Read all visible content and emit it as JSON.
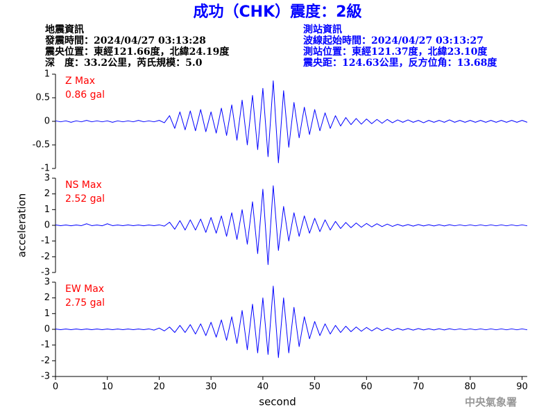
{
  "header": {
    "title": "成功（CHK）震度：2級",
    "left": [
      "地震資訊",
      "發震時間：2024/04/27 03:13:28",
      "震央位置：東經121.66度，北緯24.19度",
      "深　度：33.2公里，芮氏規模：5.0"
    ],
    "right": [
      "測站資訊",
      "波線起始時間：2024/04/27 03:13:27",
      "測站位置：東經121.37度，北緯23.10度",
      "震央距：124.63公里，反方位角：13.68度"
    ]
  },
  "footer": "中央氣象署",
  "chart_data": [
    {
      "type": "line",
      "label": "Z Max",
      "max_label": "0.86 gal",
      "color": "#0000ff",
      "xlim": [
        0,
        91
      ],
      "ylim": [
        -1,
        1
      ],
      "yticks": [
        -1,
        -0.5,
        0,
        0.5,
        1
      ],
      "x": [
        0,
        1,
        2,
        3,
        4,
        5,
        6,
        7,
        8,
        9,
        10,
        11,
        12,
        13,
        14,
        15,
        16,
        17,
        18,
        19,
        20,
        21,
        22,
        23,
        24,
        25,
        26,
        27,
        28,
        29,
        30,
        31,
        32,
        33,
        34,
        35,
        36,
        37,
        38,
        39,
        40,
        41,
        42,
        43,
        44,
        45,
        46,
        47,
        48,
        49,
        50,
        51,
        52,
        53,
        54,
        55,
        56,
        57,
        58,
        59,
        60,
        61,
        62,
        63,
        64,
        65,
        66,
        67,
        68,
        69,
        70,
        71,
        72,
        73,
        74,
        75,
        76,
        77,
        78,
        79,
        80,
        81,
        82,
        83,
        84,
        85,
        86,
        87,
        88,
        89,
        90,
        91
      ],
      "values": [
        0.01,
        -0.01,
        0.01,
        -0.02,
        0.01,
        -0.01,
        0.02,
        -0.01,
        0.01,
        -0.01,
        0.01,
        -0.02,
        0.01,
        -0.01,
        0.01,
        -0.01,
        0.02,
        -0.01,
        0.01,
        -0.01,
        0.02,
        -0.03,
        0.12,
        -0.15,
        0.2,
        -0.18,
        0.22,
        -0.2,
        0.25,
        -0.22,
        0.2,
        -0.25,
        0.28,
        -0.3,
        0.35,
        -0.4,
        0.45,
        -0.5,
        0.55,
        -0.6,
        0.7,
        -0.75,
        0.86,
        -0.88,
        0.65,
        -0.55,
        0.4,
        -0.35,
        0.3,
        -0.28,
        0.25,
        -0.2,
        0.18,
        -0.15,
        0.12,
        -0.1,
        0.08,
        -0.07,
        0.06,
        -0.06,
        0.05,
        -0.05,
        0.04,
        -0.04,
        0.04,
        -0.03,
        0.03,
        -0.02,
        0.03,
        -0.02,
        0.02,
        -0.03,
        0.02,
        -0.02,
        0.02,
        -0.02,
        0.03,
        -0.02,
        0.02,
        -0.02,
        0.02,
        -0.02,
        0.02,
        -0.02,
        0.02,
        -0.02,
        0.02,
        -0.02,
        0.02,
        -0.02,
        0.02,
        -0.02
      ]
    },
    {
      "type": "line",
      "label": "NS Max",
      "max_label": "2.52 gal",
      "color": "#0000ff",
      "ylabel": "acceleration",
      "xlim": [
        0,
        91
      ],
      "ylim": [
        -3,
        3
      ],
      "yticks": [
        -3,
        -2,
        -1,
        0,
        1,
        2,
        3
      ],
      "x": [
        0,
        1,
        2,
        3,
        4,
        5,
        6,
        7,
        8,
        9,
        10,
        11,
        12,
        13,
        14,
        15,
        16,
        17,
        18,
        19,
        20,
        21,
        22,
        23,
        24,
        25,
        26,
        27,
        28,
        29,
        30,
        31,
        32,
        33,
        34,
        35,
        36,
        37,
        38,
        39,
        40,
        41,
        42,
        43,
        44,
        45,
        46,
        47,
        48,
        49,
        50,
        51,
        52,
        53,
        54,
        55,
        56,
        57,
        58,
        59,
        60,
        61,
        62,
        63,
        64,
        65,
        66,
        67,
        68,
        69,
        70,
        71,
        72,
        73,
        74,
        75,
        76,
        77,
        78,
        79,
        80,
        81,
        82,
        83,
        84,
        85,
        86,
        87,
        88,
        89,
        90,
        91
      ],
      "values": [
        0.03,
        -0.02,
        0.02,
        -0.03,
        0.02,
        -0.02,
        0.1,
        -0.02,
        0.02,
        -0.03,
        0.1,
        -0.02,
        0.02,
        -0.02,
        0.03,
        -0.02,
        0.02,
        -0.03,
        0.02,
        -0.02,
        0.03,
        -0.05,
        0.2,
        -0.25,
        0.3,
        -0.3,
        0.35,
        -0.3,
        0.4,
        -0.45,
        0.5,
        -0.5,
        0.6,
        -0.7,
        0.8,
        -0.9,
        1.0,
        -1.2,
        1.5,
        -1.8,
        2.3,
        -2.5,
        2.52,
        -1.6,
        1.2,
        -1.0,
        0.8,
        -0.7,
        0.6,
        -0.5,
        0.45,
        -0.4,
        0.35,
        -0.3,
        0.25,
        -0.2,
        0.18,
        -0.15,
        0.15,
        -0.12,
        0.12,
        -0.1,
        0.1,
        -0.08,
        0.08,
        -0.07,
        0.06,
        -0.05,
        0.05,
        -0.05,
        0.05,
        -0.04,
        0.04,
        -0.04,
        0.04,
        -0.04,
        0.04,
        -0.03,
        0.03,
        -0.03,
        0.03,
        -0.03,
        0.03,
        -0.03,
        0.03,
        -0.03,
        0.03,
        -0.03,
        0.03,
        -0.03,
        0.03,
        -0.03
      ]
    },
    {
      "type": "line",
      "label": "EW Max",
      "max_label": "2.75 gal",
      "color": "#0000ff",
      "xlabel": "second",
      "xlim": [
        0,
        91
      ],
      "xticks": [
        0,
        10,
        20,
        30,
        40,
        50,
        60,
        70,
        80,
        90
      ],
      "ylim": [
        -3,
        3
      ],
      "yticks": [
        -3,
        -2,
        -1,
        0,
        1,
        2,
        3
      ],
      "x": [
        0,
        1,
        2,
        3,
        4,
        5,
        6,
        7,
        8,
        9,
        10,
        11,
        12,
        13,
        14,
        15,
        16,
        17,
        18,
        19,
        20,
        21,
        22,
        23,
        24,
        25,
        26,
        27,
        28,
        29,
        30,
        31,
        32,
        33,
        34,
        35,
        36,
        37,
        38,
        39,
        40,
        41,
        42,
        43,
        44,
        45,
        46,
        47,
        48,
        49,
        50,
        51,
        52,
        53,
        54,
        55,
        56,
        57,
        58,
        59,
        60,
        61,
        62,
        63,
        64,
        65,
        66,
        67,
        68,
        69,
        70,
        71,
        72,
        73,
        74,
        75,
        76,
        77,
        78,
        79,
        80,
        81,
        82,
        83,
        84,
        85,
        86,
        87,
        88,
        89,
        90,
        91
      ],
      "values": [
        0.02,
        -0.02,
        0.02,
        -0.02,
        0.02,
        -0.02,
        0.02,
        -0.02,
        0.02,
        -0.02,
        0.02,
        -0.02,
        0.02,
        -0.02,
        0.02,
        -0.02,
        0.02,
        -0.02,
        0.03,
        -0.05,
        0.08,
        -0.1,
        0.15,
        -0.2,
        0.25,
        -0.2,
        0.3,
        -0.3,
        0.35,
        -0.4,
        0.45,
        -0.5,
        0.6,
        -0.7,
        0.8,
        -0.9,
        1.2,
        -1.3,
        1.6,
        -1.5,
        2.0,
        -1.6,
        2.75,
        -1.8,
        2.0,
        -1.5,
        1.4,
        -1.1,
        0.8,
        -0.6,
        0.5,
        -0.4,
        0.35,
        -0.3,
        0.25,
        -0.2,
        0.2,
        -0.15,
        0.15,
        -0.12,
        0.12,
        -0.1,
        0.1,
        -0.08,
        0.08,
        -0.07,
        0.06,
        -0.05,
        0.05,
        -0.05,
        0.05,
        -0.04,
        0.04,
        -0.04,
        0.04,
        -0.04,
        0.04,
        -0.03,
        0.03,
        -0.03,
        0.03,
        -0.03,
        0.03,
        -0.03,
        0.03,
        -0.03,
        0.03,
        -0.03,
        0.03,
        -0.03,
        0.03,
        -0.03
      ]
    }
  ]
}
